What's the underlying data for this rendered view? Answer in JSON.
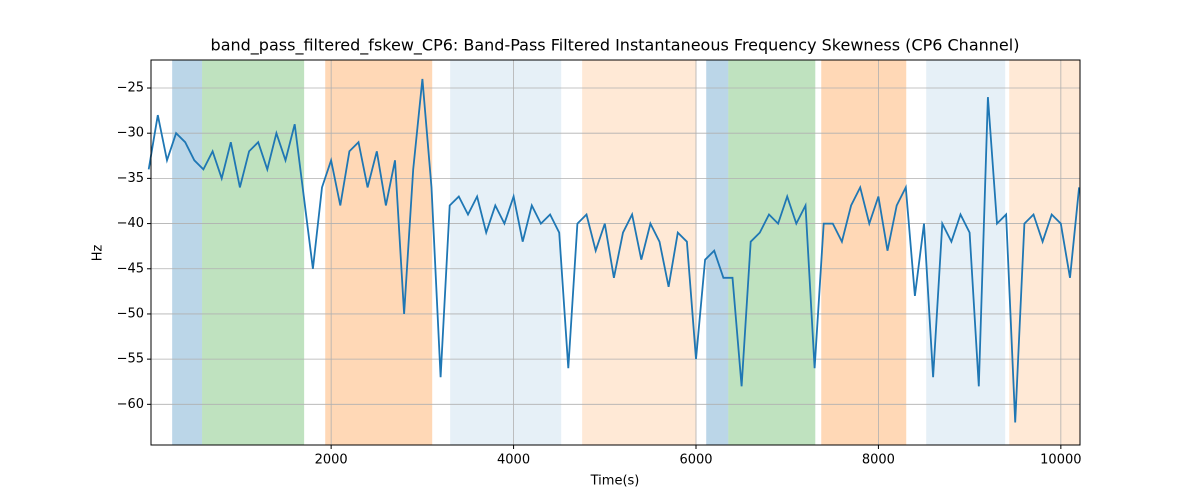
{
  "chart_data": {
    "type": "line",
    "title": "band_pass_filtered_fskew_CP6: Band-Pass Filtered Instantaneous Frequency Skewness (CP6 Channel)",
    "xlabel": "Time(s)",
    "ylabel": "Hz",
    "color": "#1f77b4",
    "grid": true,
    "xlim": [
      25,
      10210
    ],
    "ylim": [
      -64.5,
      -21.9
    ],
    "xticks": [
      2000,
      4000,
      6000,
      8000,
      10000
    ],
    "yticks": [
      {
        "value": -60,
        "label": "−60"
      },
      {
        "value": -55,
        "label": "−55"
      },
      {
        "value": -50,
        "label": "−50"
      },
      {
        "value": -45,
        "label": "−45"
      },
      {
        "value": -40,
        "label": "−40"
      },
      {
        "value": -35,
        "label": "−35"
      },
      {
        "value": -30,
        "label": "−30"
      },
      {
        "value": -25,
        "label": "−25"
      }
    ],
    "spans": [
      {
        "x": [
          257,
          585
        ],
        "color": "#1f77b4",
        "opacity": 0.3
      },
      {
        "x": [
          585,
          1704
        ],
        "color": "#2ca02c",
        "opacity": 0.3
      },
      {
        "x": [
          1935,
          3108
        ],
        "color": "#ff7f0e",
        "opacity": 0.3
      },
      {
        "x": [
          3305,
          4522
        ],
        "color": "#1f77b4",
        "opacity": 0.11
      },
      {
        "x": [
          4752,
          6003
        ],
        "color": "#ff7f0e",
        "opacity": 0.17
      },
      {
        "x": [
          6112,
          6354
        ],
        "color": "#1f77b4",
        "opacity": 0.3
      },
      {
        "x": [
          6354,
          7308
        ],
        "color": "#2ca02c",
        "opacity": 0.3
      },
      {
        "x": [
          7373,
          8305
        ],
        "color": "#ff7f0e",
        "opacity": 0.3
      },
      {
        "x": [
          8524,
          9390
        ],
        "color": "#1f77b4",
        "opacity": 0.11
      },
      {
        "x": [
          9434,
          10210
        ],
        "color": "#ff7f0e",
        "opacity": 0.17
      }
    ],
    "x": [
      0,
      100,
      200,
      300,
      400,
      500,
      600,
      700,
      800,
      900,
      1000,
      1100,
      1200,
      1300,
      1400,
      1500,
      1600,
      1700,
      1800,
      1900,
      2000,
      2100,
      2200,
      2300,
      2400,
      2500,
      2600,
      2700,
      2800,
      2900,
      3000,
      3100,
      3200,
      3300,
      3400,
      3500,
      3600,
      3700,
      3800,
      3900,
      4000,
      4100,
      4200,
      4300,
      4400,
      4500,
      4600,
      4700,
      4800,
      4900,
      5000,
      5100,
      5200,
      5300,
      5400,
      5500,
      5600,
      5700,
      5800,
      5900,
      6000,
      6100,
      6200,
      6300,
      6400,
      6500,
      6600,
      6700,
      6800,
      6900,
      7000,
      7100,
      7200,
      7300,
      7400,
      7500,
      7600,
      7700,
      7800,
      7900,
      8000,
      8100,
      8200,
      8300,
      8400,
      8500,
      8600,
      8700,
      8800,
      8900,
      9000,
      9100,
      9200,
      9300,
      9400,
      9500,
      9600,
      9700,
      9800,
      9900,
      10000,
      10100,
      10200
    ],
    "values": [
      -34,
      -28,
      -33,
      -30,
      -31,
      -33,
      -34,
      -32,
      -35,
      -31,
      -36,
      -32,
      -31,
      -34,
      -30,
      -33,
      -29,
      -37,
      -45,
      -36,
      -33,
      -38,
      -32,
      -31,
      -36,
      -32,
      -38,
      -33,
      -50,
      -34,
      -24,
      -36,
      -57,
      -38,
      -37,
      -39,
      -37,
      -41,
      -38,
      -40,
      -37,
      -42,
      -38,
      -40,
      -39,
      -41,
      -56,
      -40,
      -39,
      -43,
      -40,
      -46,
      -41,
      -39,
      -44,
      -40,
      -42,
      -47,
      -41,
      -42,
      -55,
      -44,
      -43,
      -46,
      -46,
      -58,
      -42,
      -41,
      -39,
      -40,
      -37,
      -40,
      -38,
      -56,
      -40,
      -40,
      -42,
      -38,
      -36,
      -40,
      -37,
      -43,
      -38,
      -36,
      -48,
      -40,
      -57,
      -40,
      -42,
      -39,
      -41,
      -58,
      -26,
      -40,
      -39,
      -62,
      -40,
      -39,
      -42,
      -39,
      -40,
      -46,
      -36
    ]
  }
}
